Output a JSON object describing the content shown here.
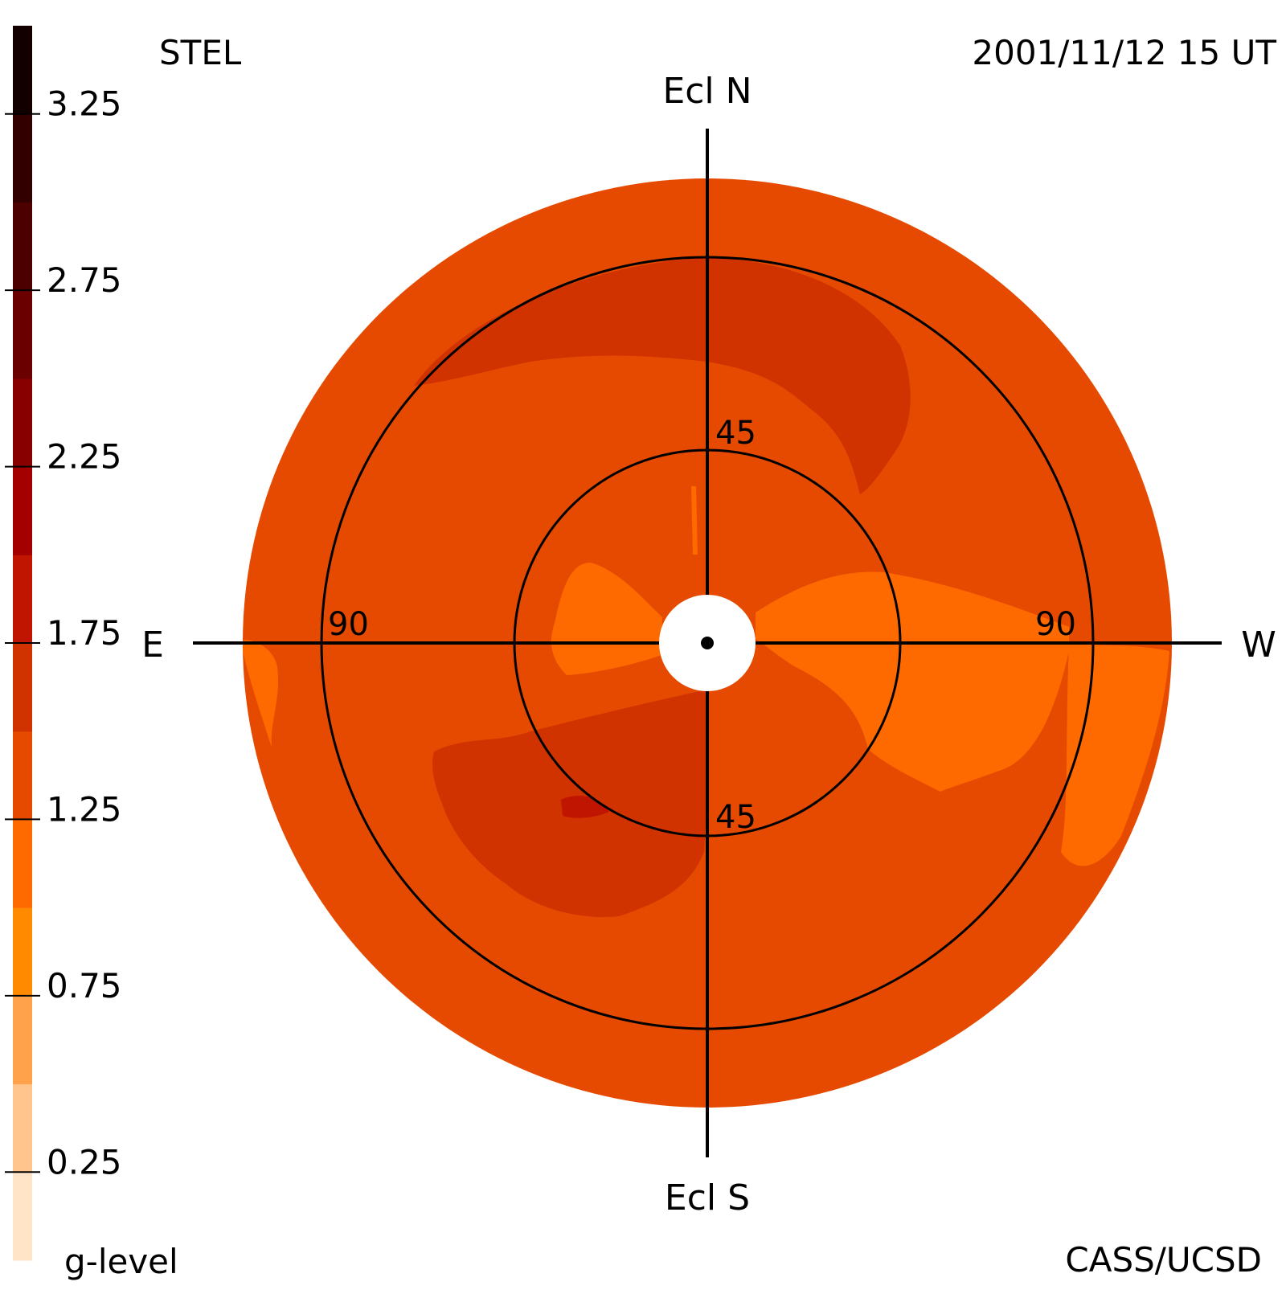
{
  "header": {
    "instrument": "STEL",
    "timestamp": "2001/11/12 15 UT",
    "credit": "CASS/UCSD"
  },
  "chart_data": {
    "type": "heatmap",
    "title": "",
    "projection": "fisheye sky map centred on Sun, elongation rings",
    "directions": {
      "north": "Ecl N",
      "south": "Ecl S",
      "east": "E",
      "west": "W"
    },
    "elongation_rings": [
      {
        "label": "45",
        "value": 45
      },
      {
        "label": "90",
        "value": 90
      }
    ],
    "max_elongation": 108,
    "colorbar": {
      "label": "g-level",
      "range": [
        0,
        3.5
      ],
      "ticks": [
        "0.25",
        "0.75",
        "1.25",
        "1.75",
        "2.25",
        "2.75",
        "3.25"
      ],
      "tick_values": [
        0.25,
        0.75,
        1.25,
        1.75,
        2.25,
        2.75,
        3.25
      ],
      "bins": [
        {
          "from": 0.0,
          "to": 0.25,
          "color": "#ffe4c8"
        },
        {
          "from": 0.25,
          "to": 0.5,
          "color": "#ffc58d"
        },
        {
          "from": 0.5,
          "to": 0.75,
          "color": "#ffa24b"
        },
        {
          "from": 0.75,
          "to": 1.0,
          "color": "#ff8a00"
        },
        {
          "from": 1.0,
          "to": 1.25,
          "color": "#ff6a00"
        },
        {
          "from": 1.25,
          "to": 1.5,
          "color": "#e64a00"
        },
        {
          "from": 1.5,
          "to": 1.75,
          "color": "#d03200"
        },
        {
          "from": 1.75,
          "to": 2.0,
          "color": "#c01500"
        },
        {
          "from": 2.0,
          "to": 2.25,
          "color": "#a50000"
        },
        {
          "from": 2.25,
          "to": 2.5,
          "color": "#880000"
        },
        {
          "from": 2.5,
          "to": 2.75,
          "color": "#6a0000"
        },
        {
          "from": 2.75,
          "to": 3.0,
          "color": "#4d0000"
        },
        {
          "from": 3.0,
          "to": 3.25,
          "color": "#330000"
        },
        {
          "from": 3.25,
          "to": 3.5,
          "color": "#120000"
        }
      ]
    },
    "regions": [
      {
        "name": "background",
        "g_level": 1.3,
        "color": "#e64a00"
      },
      {
        "name": "north-arc",
        "g_level": 1.6,
        "color": "#d03200"
      },
      {
        "name": "southeast-lobe",
        "g_level": 1.6,
        "color": "#d03200"
      },
      {
        "name": "southeast-peak",
        "g_level": 1.9,
        "color": "#c01500"
      },
      {
        "name": "inner-east-lobe",
        "g_level": 1.1,
        "color": "#ff6a00"
      },
      {
        "name": "inner-west-lobe",
        "g_level": 1.1,
        "color": "#ff6a00"
      },
      {
        "name": "east-rim",
        "g_level": 1.1,
        "color": "#ff6a00"
      }
    ]
  }
}
